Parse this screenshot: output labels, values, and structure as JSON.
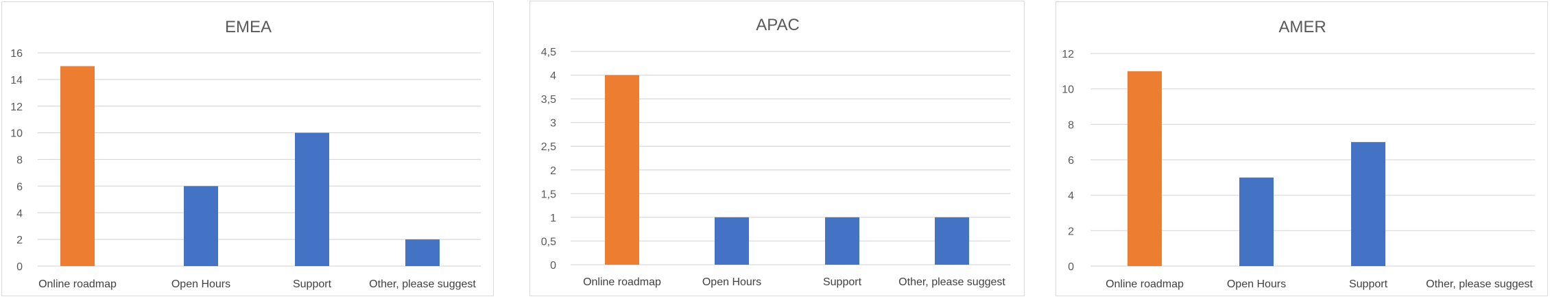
{
  "charts": {
    "chart_data": [
      {
        "type": "bar",
        "title": "EMEA",
        "categories": [
          "Online roadmap",
          "Open Hours",
          "Support",
          "Other, please suggest"
        ],
        "values": [
          15,
          6,
          10,
          2
        ],
        "ylim": [
          0,
          16
        ],
        "yticks": [
          "0",
          "2",
          "4",
          "6",
          "8",
          "10",
          "12",
          "14",
          "16"
        ],
        "tick_values": [
          0,
          2,
          4,
          6,
          8,
          10,
          12,
          14,
          16
        ],
        "bar_colors": [
          "#ED7D31",
          "#4472C4",
          "#4472C4",
          "#4472C4"
        ],
        "grid": true,
        "legend": "none"
      },
      {
        "type": "bar",
        "title": "APAC",
        "categories": [
          "Online roadmap",
          "Open Hours",
          "Support",
          "Other, please suggest"
        ],
        "values": [
          4,
          1,
          1,
          1
        ],
        "ylim": [
          0,
          4.5
        ],
        "yticks": [
          "0",
          "0,5",
          "1",
          "1,5",
          "2",
          "2,5",
          "3",
          "3,5",
          "4",
          "4,5"
        ],
        "tick_values": [
          0,
          0.5,
          1,
          1.5,
          2,
          2.5,
          3,
          3.5,
          4,
          4.5
        ],
        "bar_colors": [
          "#ED7D31",
          "#4472C4",
          "#4472C4",
          "#4472C4"
        ],
        "grid": true,
        "legend": "none"
      },
      {
        "type": "bar",
        "title": "AMER",
        "categories": [
          "Online roadmap",
          "Open Hours",
          "Support",
          "Other, please suggest"
        ],
        "values": [
          11,
          5,
          7,
          0
        ],
        "ylim": [
          0,
          12
        ],
        "yticks": [
          "0",
          "2",
          "4",
          "6",
          "8",
          "10",
          "12"
        ],
        "tick_values": [
          0,
          2,
          4,
          6,
          8,
          10,
          12
        ],
        "bar_colors": [
          "#ED7D31",
          "#4472C4",
          "#4472C4",
          "#4472C4"
        ],
        "grid": true,
        "legend": "none"
      }
    ]
  }
}
